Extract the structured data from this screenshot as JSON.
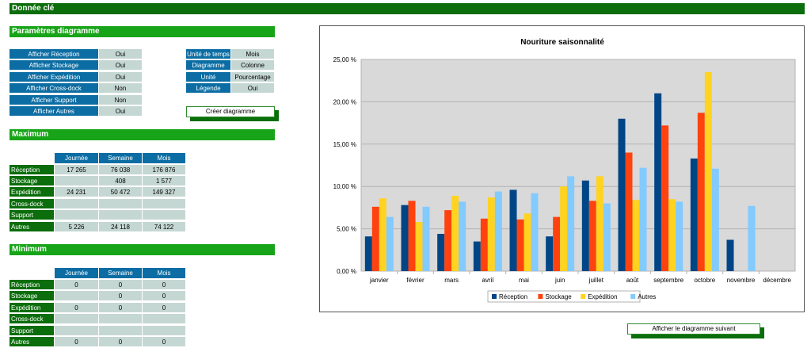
{
  "header": {
    "title": "Donnée clé"
  },
  "params": {
    "title": "Paramètres diagramme",
    "left": [
      {
        "label": "Afficher Réception",
        "value": "Oui"
      },
      {
        "label": "Afficher Stockage",
        "value": "Oui"
      },
      {
        "label": "Afficher Expédition",
        "value": "Oui"
      },
      {
        "label": "Afficher Cross-dock",
        "value": "Non"
      },
      {
        "label": "Afficher Support",
        "value": "Non"
      },
      {
        "label": "Afficher Autres",
        "value": "Oui"
      }
    ],
    "right": [
      {
        "label": "Unité de temps",
        "value": "Mois"
      },
      {
        "label": "Diagramme",
        "value": "Colonne"
      },
      {
        "label": "Unité",
        "value": "Pourcentage"
      },
      {
        "label": "Légende",
        "value": "Oui"
      }
    ],
    "create_button": "Créer diagramme"
  },
  "maximum": {
    "title": "Maximum",
    "columns": [
      "Journée",
      "Semaine",
      "Mois"
    ],
    "rows": [
      {
        "label": "Réception",
        "values": [
          "17 265",
          "76 038",
          "176 876"
        ]
      },
      {
        "label": "Stockage",
        "values": [
          "",
          "408",
          "1 577"
        ]
      },
      {
        "label": "Expédition",
        "values": [
          "24 231",
          "50 472",
          "149 327"
        ]
      },
      {
        "label": "Cross-dock",
        "values": [
          "",
          "",
          ""
        ]
      },
      {
        "label": "Support",
        "values": [
          "",
          "",
          ""
        ]
      },
      {
        "label": "Autres",
        "values": [
          "5 226",
          "24 118",
          "74 122"
        ]
      }
    ]
  },
  "minimum": {
    "title": "Minimum",
    "columns": [
      "Journée",
      "Semaine",
      "Mois"
    ],
    "rows": [
      {
        "label": "Réception",
        "values": [
          "0",
          "0",
          "0"
        ]
      },
      {
        "label": "Stockage",
        "values": [
          "",
          "0",
          "0"
        ]
      },
      {
        "label": "Expédition",
        "values": [
          "0",
          "0",
          "0"
        ]
      },
      {
        "label": "Cross-dock",
        "values": [
          "",
          "",
          ""
        ]
      },
      {
        "label": "Support",
        "values": [
          "",
          "",
          ""
        ]
      },
      {
        "label": "Autres",
        "values": [
          "0",
          "0",
          "0"
        ]
      }
    ]
  },
  "next_button": "Afficher le diagramme suivant",
  "chart_data": {
    "type": "bar",
    "title": "Nouriture saisonnalité",
    "categories": [
      "janvier",
      "février",
      "mars",
      "avril",
      "mai",
      "juin",
      "juillet",
      "août",
      "septembre",
      "octobre",
      "novembre",
      "décembre"
    ],
    "ylim": [
      0,
      25
    ],
    "yticks": [
      "0,00 %",
      "5,00 %",
      "10,00 %",
      "15,00 %",
      "20,00 %",
      "25,00 %"
    ],
    "grid": true,
    "legend": "bottom",
    "series": [
      {
        "name": "Réception",
        "color": "#004586",
        "values": [
          4.1,
          7.8,
          4.4,
          3.5,
          9.6,
          4.1,
          10.7,
          18.0,
          21.0,
          13.3,
          3.7,
          0
        ]
      },
      {
        "name": "Stockage",
        "color": "#ff420e",
        "values": [
          7.6,
          8.3,
          7.2,
          6.2,
          6.1,
          6.4,
          8.3,
          14.0,
          17.2,
          18.7,
          0,
          0
        ]
      },
      {
        "name": "Expédition",
        "color": "#ffd320",
        "values": [
          8.6,
          5.8,
          8.9,
          8.7,
          6.8,
          10.0,
          11.2,
          8.4,
          8.5,
          23.5,
          0,
          0
        ]
      },
      {
        "name": "Autres",
        "color": "#83caff",
        "values": [
          6.4,
          7.6,
          8.2,
          9.4,
          9.2,
          11.2,
          8.0,
          12.2,
          8.2,
          12.1,
          7.7,
          0
        ]
      }
    ]
  }
}
